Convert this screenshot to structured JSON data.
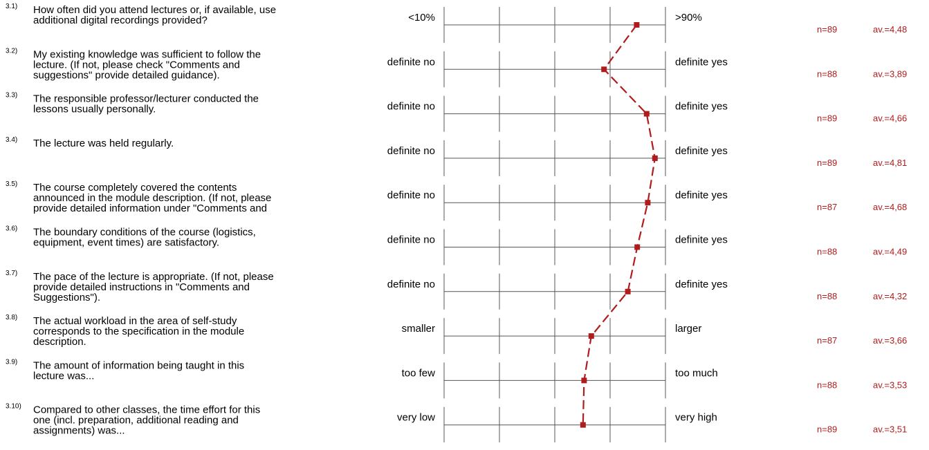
{
  "chart_data": {
    "type": "line",
    "colors": {
      "line": "#b01c1c",
      "marker": "#b01c1c",
      "stats": "#b01c1c",
      "grid": "#555555"
    },
    "scale": {
      "min": 1,
      "max": 5
    },
    "items": [
      {
        "number": "3.1)",
        "question": [
          "How often did you attend lectures or, if available, use",
          "additional digital recordings provided?"
        ],
        "left_label": "<10%",
        "right_label": ">90%",
        "n": "n=89",
        "av": "av.=4,48",
        "value": 4.48
      },
      {
        "number": "3.2)",
        "question": [
          "My existing knowledge was sufficient to follow the",
          "lecture. (If not, please check \"Comments and",
          "suggestions\" provide detailed guidance)."
        ],
        "left_label": "definite no",
        "right_label": "definite yes",
        "n": "n=88",
        "av": "av.=3,89",
        "value": 3.89
      },
      {
        "number": "3.3)",
        "question": [
          "The responsible professor/lecturer conducted the",
          "lessons usually personally."
        ],
        "left_label": "definite no",
        "right_label": "definite yes",
        "n": "n=89",
        "av": "av.=4,66",
        "value": 4.66
      },
      {
        "number": "3.4)",
        "question": [
          "The lecture was held regularly."
        ],
        "left_label": "definite no",
        "right_label": "definite yes",
        "n": "n=89",
        "av": "av.=4,81",
        "value": 4.81
      },
      {
        "number": "3.5)",
        "question": [
          "The course completely covered the contents",
          "announced in the module description. (If not, please",
          "provide detailed information under \"Comments and"
        ],
        "left_label": "definite no",
        "right_label": "definite yes",
        "n": "n=87",
        "av": "av.=4,68",
        "value": 4.68
      },
      {
        "number": "3.6)",
        "question": [
          "The boundary conditions of the course (logistics,",
          "equipment, event times) are satisfactory."
        ],
        "left_label": "definite no",
        "right_label": "definite yes",
        "n": "n=88",
        "av": "av.=4,49",
        "value": 4.49
      },
      {
        "number": "3.7)",
        "question": [
          "The pace of the lecture is appropriate. (If not, please",
          "provide detailed instructions in \"Comments and",
          "Suggestions\")."
        ],
        "left_label": "definite no",
        "right_label": "definite yes",
        "n": "n=88",
        "av": "av.=4,32",
        "value": 4.32
      },
      {
        "number": "3.8)",
        "question": [
          "The actual workload in the area of self-study",
          "corresponds to the specification in the module",
          "description."
        ],
        "left_label": "smaller",
        "right_label": "larger",
        "n": "n=87",
        "av": "av.=3,66",
        "value": 3.66
      },
      {
        "number": "3.9)",
        "question": [
          "The amount of information being taught in this",
          "lecture was..."
        ],
        "left_label": "too few",
        "right_label": "too much",
        "n": "n=88",
        "av": "av.=3,53",
        "value": 3.53
      },
      {
        "number": "3.10)",
        "question": [
          "Compared to other classes, the time effort for this",
          "one (incl. preparation, additional reading and",
          "assignments) was..."
        ],
        "left_label": "very low",
        "right_label": "very high",
        "n": "n=89",
        "av": "av.=3,51",
        "value": 3.51
      }
    ]
  }
}
